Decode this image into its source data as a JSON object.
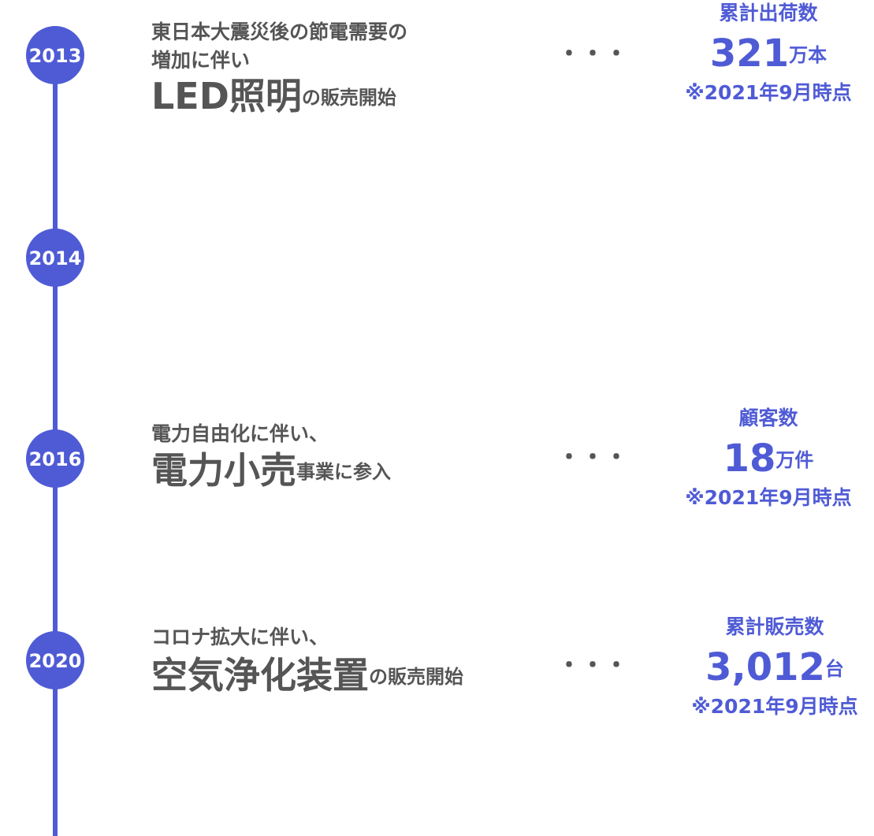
{
  "timeline": [
    {
      "year": "2013",
      "description": [
        "東日本大震災後の節電需要の",
        "増加に伴い"
      ],
      "headline": {
        "highlight": "LED照明",
        "rest": "の販売開始"
      },
      "connector": "・・・",
      "stat": {
        "label": "累計出荷数",
        "value": "321",
        "unit": "万本",
        "note": "※2021年9月時点"
      }
    },
    {
      "year": "2014"
    },
    {
      "year": "2016",
      "description": [
        "電力自由化に伴い、"
      ],
      "headline": {
        "highlight": "電力小売",
        "rest": "事業に参入"
      },
      "connector": "・・・",
      "stat": {
        "label": "顧客数",
        "value": "18",
        "unit": "万件",
        "note": "※2021年9月時点"
      }
    },
    {
      "year": "2020",
      "description": [
        "コロナ拡大に伴い、"
      ],
      "headline": {
        "highlight": "空気浄化装置",
        "rest": "の販売開始"
      },
      "connector": "・・・",
      "stat": {
        "label": "累計販売数",
        "value": "3,012",
        "unit": "台",
        "note": "※2021年9月時点"
      }
    }
  ]
}
